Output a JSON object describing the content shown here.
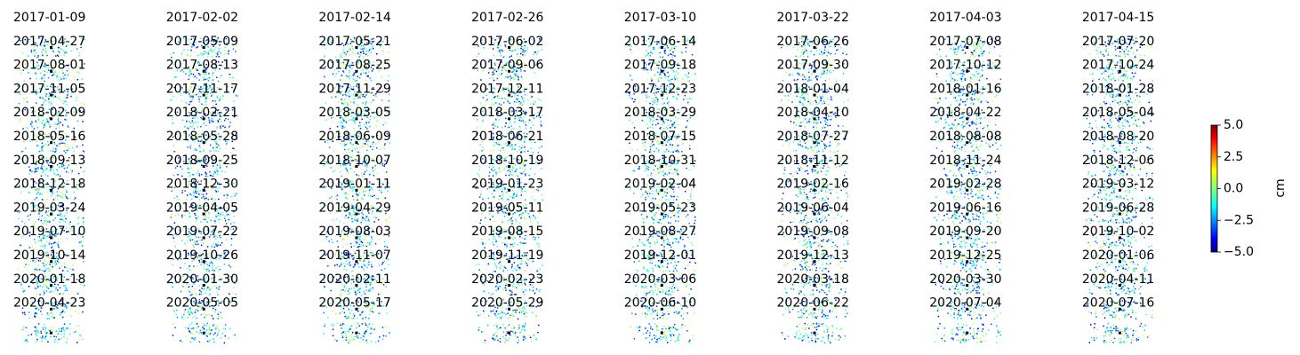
{
  "panels": [
    "2017-01-09",
    "2017-02-02",
    "2017-02-14",
    "2017-02-26",
    "2017-03-10",
    "2017-03-22",
    "2017-04-03",
    "2017-04-15",
    "2017-04-27",
    "2017-05-09",
    "2017-05-21",
    "2017-06-02",
    "2017-06-14",
    "2017-06-26",
    "2017-07-08",
    "2017-07-20",
    "2017-08-01",
    "2017-08-13",
    "2017-08-25",
    "2017-09-06",
    "2017-09-18",
    "2017-09-30",
    "2017-10-12",
    "2017-10-24",
    "2017-11-05",
    "2017-11-17",
    "2017-11-29",
    "2017-12-11",
    "2017-12-23",
    "2018-01-04",
    "2018-01-16",
    "2018-01-28",
    "2018-02-09",
    "2018-02-21",
    "2018-03-05",
    "2018-03-17",
    "2018-03-29",
    "2018-04-10",
    "2018-04-22",
    "2018-05-04",
    "2018-05-16",
    "2018-05-28",
    "2018-06-09",
    "2018-06-21",
    "2018-07-15",
    "2018-07-27",
    "2018-08-08",
    "2018-08-20",
    "2018-09-13",
    "2018-09-25",
    "2018-10-07",
    "2018-10-19",
    "2018-10-31",
    "2018-11-12",
    "2018-11-24",
    "2018-12-06",
    "2018-12-18",
    "2018-12-30",
    "2019-01-11",
    "2019-01-23",
    "2019-02-04",
    "2019-02-16",
    "2019-02-28",
    "2019-03-12",
    "2019-03-24",
    "2019-04-05",
    "2019-04-29",
    "2019-05-11",
    "2019-05-23",
    "2019-06-04",
    "2019-06-16",
    "2019-06-28",
    "2019-07-10",
    "2019-07-22",
    "2019-08-03",
    "2019-08-15",
    "2019-08-27",
    "2019-09-08",
    "2019-09-20",
    "2019-10-02",
    "2019-10-14",
    "2019-10-26",
    "2019-11-07",
    "2019-11-19",
    "2019-12-01",
    "2019-12-13",
    "2019-12-25",
    "2020-01-06",
    "2020-01-18",
    "2020-01-30",
    "2020-02-11",
    "2020-02-23",
    "2020-03-06",
    "2020-03-18",
    "2020-03-30",
    "2020-04-11",
    "2020-04-23",
    "2020-05-05",
    "2020-05-17",
    "2020-05-29",
    "2020-06-10",
    "2020-06-22",
    "2020-07-04",
    "2020-07-16"
  ],
  "colorbar": {
    "label": "cm",
    "lim": [
      -5,
      5
    ],
    "ticks": [
      {
        "value": 5,
        "label": "5.0"
      },
      {
        "value": 2.5,
        "label": "2.5"
      },
      {
        "value": 0,
        "label": "0.0"
      },
      {
        "value": -2.5,
        "label": "−2.5"
      },
      {
        "value": -5,
        "label": "−5.0"
      }
    ]
  }
}
